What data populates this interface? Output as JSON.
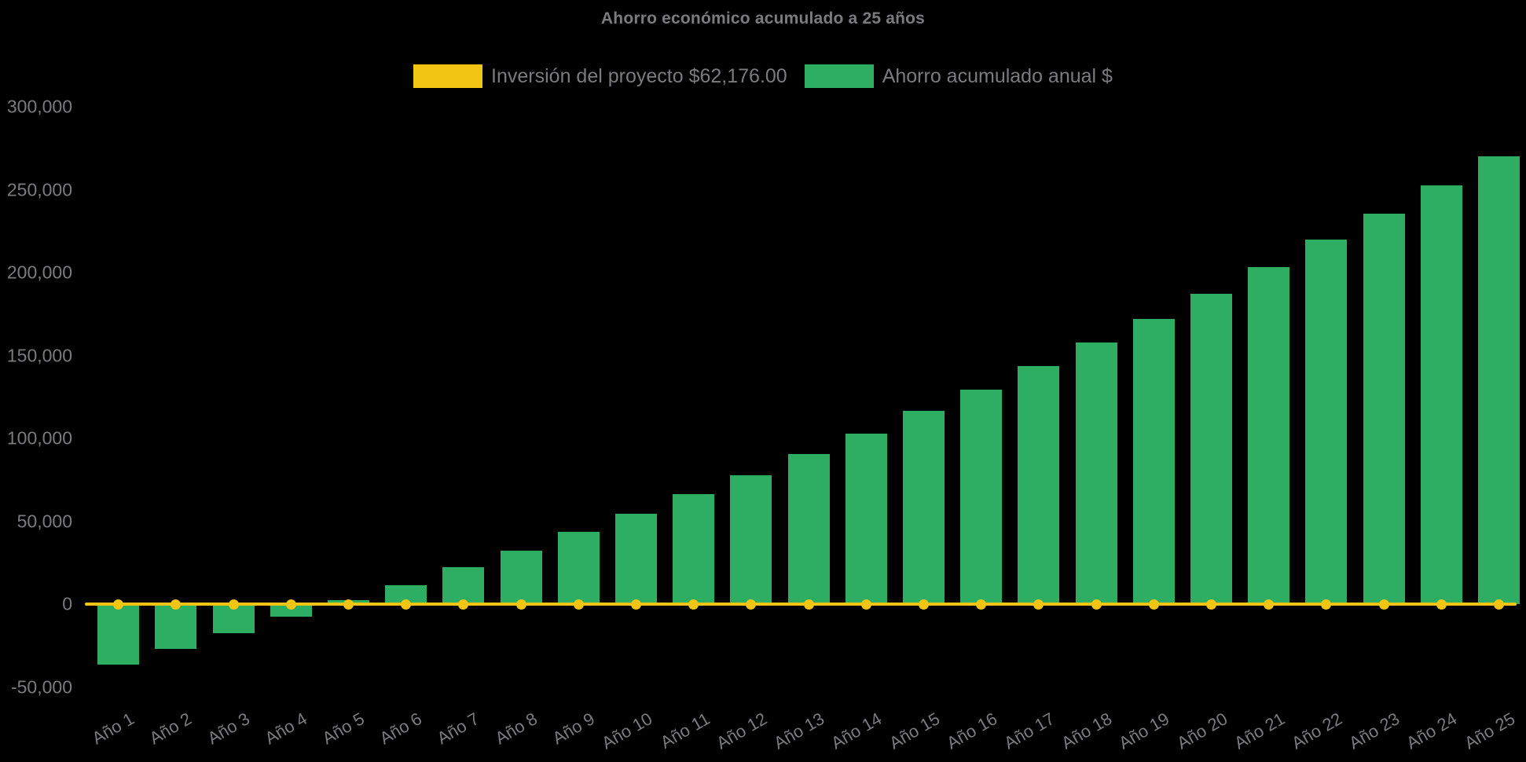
{
  "colors": {
    "background": "#000000",
    "text": "#7a7b7d",
    "bar": "#2eae62",
    "line": "#f2c512"
  },
  "chart_data": {
    "type": "bar",
    "title": "Ahorro económico acumulado a 25 años",
    "legend_position": "top",
    "grid": false,
    "background": "#000000",
    "categories": [
      "Año 1",
      "Año 2",
      "Año 3",
      "Año 4",
      "Año 5",
      "Año 6",
      "Año 7",
      "Año 8",
      "Año 9",
      "Año 10",
      "Año 11",
      "Año 12",
      "Año 13",
      "Año 14",
      "Año 15",
      "Año 16",
      "Año 17",
      "Año 18",
      "Año 19",
      "Año 20",
      "Año 21",
      "Año 22",
      "Año 23",
      "Año 24",
      "Año 25"
    ],
    "series": [
      {
        "name": "Inversión del proyecto $62,176.00",
        "type": "line",
        "color": "#f2c512",
        "constant_value": 0,
        "values": [
          0,
          0,
          0,
          0,
          0,
          0,
          0,
          0,
          0,
          0,
          0,
          0,
          0,
          0,
          0,
          0,
          0,
          0,
          0,
          0,
          0,
          0,
          0,
          0,
          0
        ]
      },
      {
        "name": "Ahorro acumulado anual $",
        "type": "bar",
        "color": "#2eae62",
        "values": [
          -36400,
          -26900,
          -17400,
          -7600,
          2200,
          11400,
          22300,
          32400,
          43600,
          54700,
          66300,
          77700,
          90400,
          103000,
          116400,
          129600,
          143600,
          158000,
          172100,
          187200,
          203200,
          219800,
          235700,
          252600,
          270000
        ]
      }
    ],
    "ylabel": "",
    "xlabel": "",
    "ylim": [
      -50000,
      310000
    ],
    "ytick_values": [
      300000,
      250000,
      200000,
      150000,
      100000,
      50000,
      0,
      -50000
    ],
    "ytick_labels": [
      "300,000",
      "250,000",
      "200,000",
      "150,000",
      "100,000",
      "50,000",
      "0",
      "-50,000"
    ]
  }
}
